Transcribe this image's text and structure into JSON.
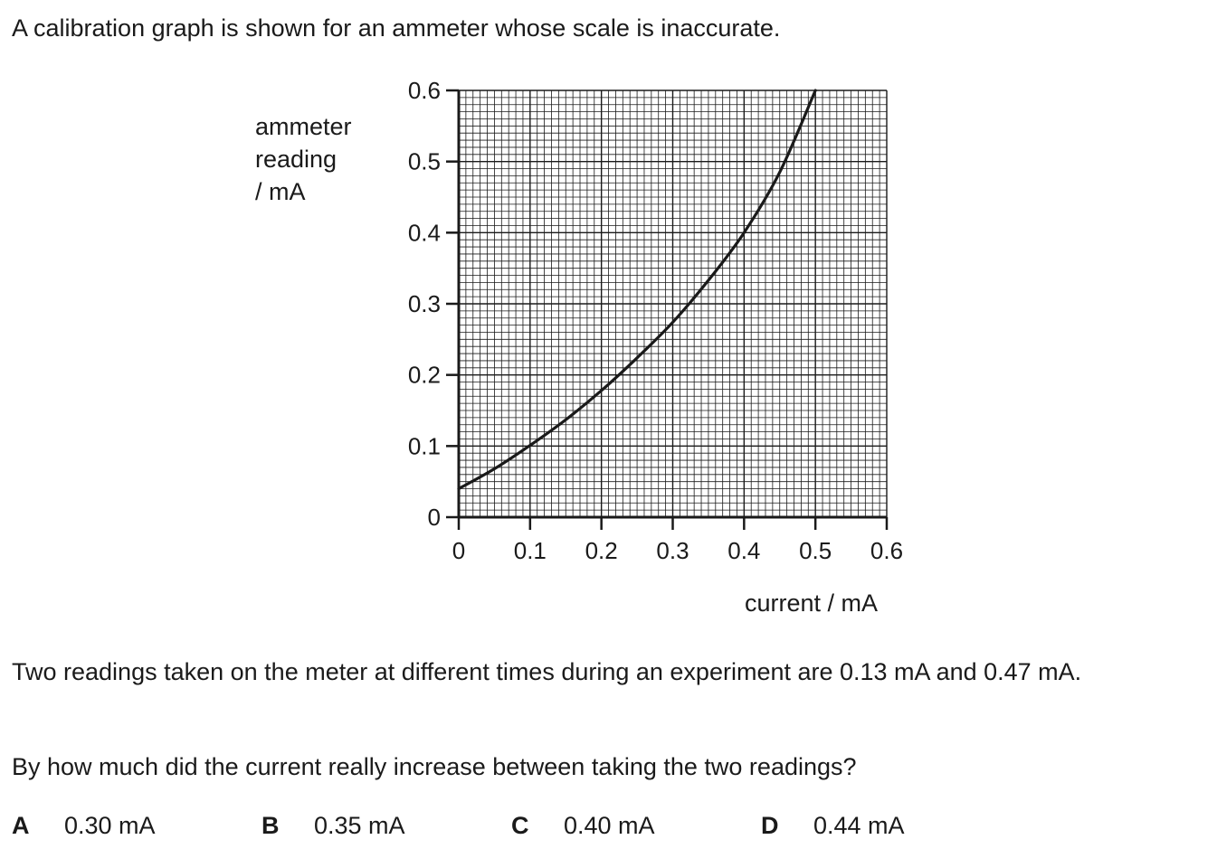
{
  "intro": "A calibration graph is shown for an ammeter whose scale is inaccurate.",
  "chart_data": {
    "type": "line",
    "title": "",
    "xlabel": "current / mA",
    "ylabel_lines": [
      "ammeter",
      "reading",
      "/ mA"
    ],
    "xlim": [
      0,
      0.6
    ],
    "ylim": [
      0,
      0.6
    ],
    "grid": true,
    "x_ticks": [
      "0",
      "0.1",
      "0.2",
      "0.3",
      "0.4",
      "0.5",
      "0.6"
    ],
    "y_ticks": [
      "0",
      "0.1",
      "0.2",
      "0.3",
      "0.4",
      "0.5",
      "0.6"
    ],
    "series": [
      {
        "x": [
          0,
          0.05,
          0.1,
          0.15,
          0.2,
          0.25,
          0.3,
          0.35,
          0.4,
          0.45,
          0.5
        ],
        "y": [
          0.04,
          0.068,
          0.101,
          0.137,
          0.178,
          0.224,
          0.274,
          0.333,
          0.4,
          0.485,
          0.6
        ]
      }
    ]
  },
  "paragraph": "Two readings taken on the meter at different times during an experiment are 0.13 mA and 0.47 mA.",
  "question": "By how much did the current really increase between taking the two readings?",
  "options": [
    {
      "letter": "A",
      "value": "0.30 mA"
    },
    {
      "letter": "B",
      "value": "0.35 mA"
    },
    {
      "letter": "C",
      "value": "0.40 mA"
    },
    {
      "letter": "D",
      "value": "0.44 mA"
    }
  ]
}
